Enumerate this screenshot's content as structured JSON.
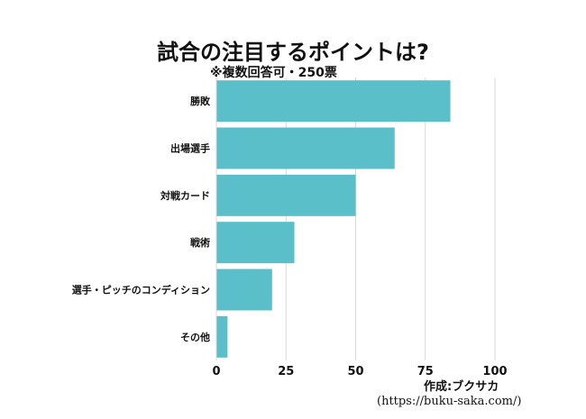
{
  "chart_data": {
    "type": "bar",
    "orientation": "horizontal",
    "title": "試合の注目するポイントは?",
    "subtitle": "※複数回答可・250票",
    "categories": [
      "勝敗",
      "出場選手",
      "対戦カード",
      "戦術",
      "選手・ピッチのコンディション",
      "その他"
    ],
    "values": [
      84,
      64,
      50,
      28,
      20,
      4
    ],
    "xlim": [
      0,
      100
    ],
    "xticks": [
      0,
      25,
      50,
      75,
      100
    ],
    "xlabel": "",
    "ylabel": "",
    "grid": true,
    "bar_color": "#5bbfc9"
  },
  "credit": {
    "line1": "作成:ブクサカ",
    "line2": "(https://buku-saka.com/)"
  }
}
